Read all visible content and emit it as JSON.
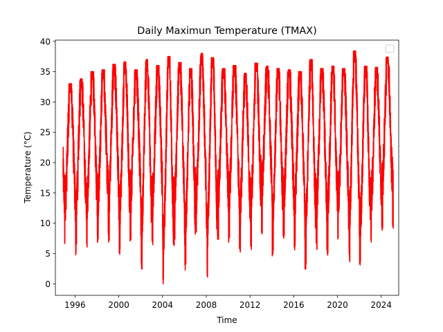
{
  "chart_data": {
    "type": "line",
    "title": "Daily Maximun Temperature (TMAX)",
    "xlabel": "Time",
    "ylabel": "Temperature (°C)",
    "xlim": [
      1994.2,
      2025.6
    ],
    "ylim": [
      -1.9,
      40.2
    ],
    "x_ticks": [
      1996,
      2000,
      2004,
      2008,
      2012,
      2016,
      2020,
      2024
    ],
    "x_tick_labels": [
      "1996",
      "2000",
      "2004",
      "2008",
      "2012",
      "2016",
      "2020",
      "2024"
    ],
    "y_ticks": [
      0,
      5,
      10,
      15,
      20,
      25,
      30,
      35,
      40
    ],
    "y_tick_labels": [
      "0",
      "5",
      "10",
      "15",
      "20",
      "25",
      "30",
      "35",
      "40"
    ],
    "grid": false,
    "legend": {
      "placement": "top-right",
      "entries": []
    },
    "series": [
      {
        "name": "TMAX",
        "color": "#ff0000",
        "x_start": 1994.9,
        "x_end": 2025.1,
        "seasonal_peaks": [
          {
            "year": 1995,
            "summer_max": 33.0,
            "winter_min": 6.0
          },
          {
            "year": 1996,
            "summer_max": 33.8,
            "winter_min": 4.6
          },
          {
            "year": 1997,
            "summer_max": 35.0,
            "winter_min": 5.8
          },
          {
            "year": 1998,
            "summer_max": 35.3,
            "winter_min": 6.4
          },
          {
            "year": 1999,
            "summer_max": 36.2,
            "winter_min": 6.8
          },
          {
            "year": 2000,
            "summer_max": 36.6,
            "winter_min": 4.6
          },
          {
            "year": 2001,
            "summer_max": 35.3,
            "winter_min": 6.8
          },
          {
            "year": 2002,
            "summer_max": 37.0,
            "winter_min": 2.2
          },
          {
            "year": 2003,
            "summer_max": 36.0,
            "winter_min": 6.4
          },
          {
            "year": 2004,
            "summer_max": 37.5,
            "winter_min": -0.1
          },
          {
            "year": 2005,
            "summer_max": 36.5,
            "winter_min": 5.6
          },
          {
            "year": 2006,
            "summer_max": 35.5,
            "winter_min": 1.5
          },
          {
            "year": 2007,
            "summer_max": 38.0,
            "winter_min": 6.8
          },
          {
            "year": 2008,
            "summer_max": 37.3,
            "winter_min": 0.9
          },
          {
            "year": 2009,
            "summer_max": 35.5,
            "winter_min": 6.6
          },
          {
            "year": 2010,
            "summer_max": 36.0,
            "winter_min": 6.6
          },
          {
            "year": 2011,
            "summer_max": 34.7,
            "winter_min": 4.6
          },
          {
            "year": 2012,
            "summer_max": 36.4,
            "winter_min": 5.6
          },
          {
            "year": 2013,
            "summer_max": 35.9,
            "winter_min": 8.0
          },
          {
            "year": 2014,
            "summer_max": 35.5,
            "winter_min": 4.6
          },
          {
            "year": 2015,
            "summer_max": 35.3,
            "winter_min": 6.6
          },
          {
            "year": 2016,
            "summer_max": 35.0,
            "winter_min": 5.5
          },
          {
            "year": 2017,
            "summer_max": 37.0,
            "winter_min": 2.2
          },
          {
            "year": 2018,
            "summer_max": 35.5,
            "winter_min": 5.5
          },
          {
            "year": 2019,
            "summer_max": 35.9,
            "winter_min": 4.6
          },
          {
            "year": 2020,
            "summer_max": 35.5,
            "winter_min": 6.6
          },
          {
            "year": 2021,
            "summer_max": 38.4,
            "winter_min": 3.5
          },
          {
            "year": 2022,
            "summer_max": 35.9,
            "winter_min": 2.3
          },
          {
            "year": 2023,
            "summer_max": 35.7,
            "winter_min": 6.4
          },
          {
            "year": 2024,
            "summer_max": 37.4,
            "winter_min": 8.4
          },
          {
            "year": 2025,
            "summer_max": 37.4,
            "winter_min": 8.8
          }
        ]
      }
    ]
  }
}
